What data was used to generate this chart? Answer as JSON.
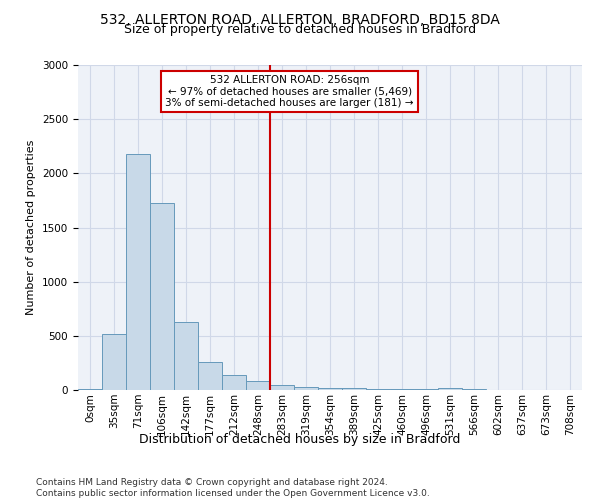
{
  "title_line1": "532, ALLERTON ROAD, ALLERTON, BRADFORD, BD15 8DA",
  "title_line2": "Size of property relative to detached houses in Bradford",
  "xlabel": "Distribution of detached houses by size in Bradford",
  "ylabel": "Number of detached properties",
  "footnote": "Contains HM Land Registry data © Crown copyright and database right 2024.\nContains public sector information licensed under the Open Government Licence v3.0.",
  "bin_labels": [
    "0sqm",
    "35sqm",
    "71sqm",
    "106sqm",
    "142sqm",
    "177sqm",
    "212sqm",
    "248sqm",
    "283sqm",
    "319sqm",
    "354sqm",
    "389sqm",
    "425sqm",
    "460sqm",
    "496sqm",
    "531sqm",
    "566sqm",
    "602sqm",
    "637sqm",
    "673sqm",
    "708sqm"
  ],
  "bar_values": [
    10,
    520,
    2180,
    1730,
    630,
    255,
    135,
    80,
    45,
    30,
    20,
    15,
    10,
    8,
    5,
    18,
    5,
    3,
    2,
    1,
    1
  ],
  "bar_color": "#c8d9e8",
  "bar_edge_color": "#6699bb",
  "grid_color": "#d0d8e8",
  "background_color": "#eef2f8",
  "vline_x": 7.5,
  "vline_color": "#cc0000",
  "annotation_text": "532 ALLERTON ROAD: 256sqm\n← 97% of detached houses are smaller (5,469)\n3% of semi-detached houses are larger (181) →",
  "annotation_box_color": "#ffffff",
  "annotation_box_edge": "#cc0000",
  "ylim": [
    0,
    3000
  ],
  "yticks": [
    0,
    500,
    1000,
    1500,
    2000,
    2500,
    3000
  ],
  "title_fontsize": 10,
  "subtitle_fontsize": 9,
  "ylabel_fontsize": 8,
  "xlabel_fontsize": 9,
  "tick_fontsize": 7.5,
  "footnote_fontsize": 6.5,
  "annotation_fontsize": 7.5
}
